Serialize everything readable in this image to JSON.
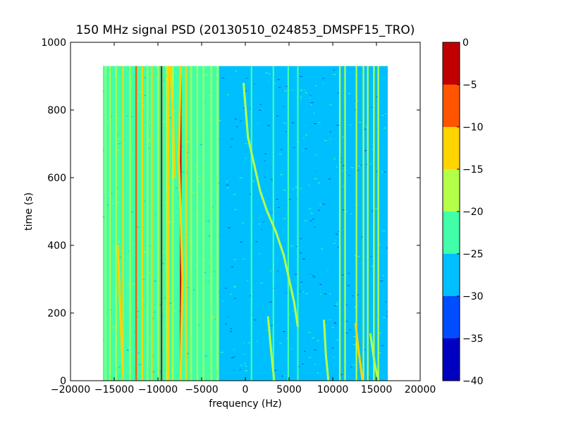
{
  "chart_data": {
    "type": "heatmap",
    "title": "150 MHz signal PSD (20130510_024853_DMSPF15_TRO)",
    "xlabel": "frequency (Hz)",
    "ylabel": "time (s)",
    "xlim": [
      -20000,
      20000
    ],
    "ylim": [
      0,
      1000
    ],
    "x_ticks": [
      "−20000",
      "−15000",
      "−10000",
      "−5000",
      "0",
      "5000",
      "10000",
      "15000",
      "20000"
    ],
    "y_ticks": [
      "0",
      "200",
      "400",
      "600",
      "800",
      "1000"
    ],
    "data_extent": {
      "x": [
        -16300,
        16300
      ],
      "y": [
        0,
        930
      ]
    },
    "colorbar": {
      "range": [
        -40,
        0
      ],
      "ticks": [
        "0",
        "−5",
        "−10",
        "−15",
        "−20",
        "−25",
        "−30",
        "−35",
        "−40"
      ],
      "levels": [
        {
          "from": -40,
          "to": -35,
          "color": "#0000c0"
        },
        {
          "from": -35,
          "to": -30,
          "color": "#004cff"
        },
        {
          "from": -30,
          "to": -25,
          "color": "#00bfff"
        },
        {
          "from": -25,
          "to": -20,
          "color": "#40ffa8"
        },
        {
          "from": -20,
          "to": -15,
          "color": "#b4ff47"
        },
        {
          "from": -15,
          "to": -10,
          "color": "#ffd400"
        },
        {
          "from": -10,
          "to": -5,
          "color": "#ff5500"
        },
        {
          "from": -5,
          "to": 0,
          "color": "#c00000"
        }
      ]
    },
    "background_regions": [
      {
        "x": [
          -16300,
          -3000
        ],
        "level": -22
      },
      {
        "x": [
          -3000,
          16300
        ],
        "level": -27
      }
    ],
    "vertical_lines": [
      {
        "x": -16000,
        "level": -18
      },
      {
        "x": -15500,
        "level": -18
      },
      {
        "x": -14800,
        "level": -18
      },
      {
        "x": -14000,
        "level": -12
      },
      {
        "x": -13200,
        "level": -18
      },
      {
        "x": -12500,
        "level": -7
      },
      {
        "x": -11800,
        "level": -12
      },
      {
        "x": -11200,
        "level": -18
      },
      {
        "x": -10700,
        "level": -12
      },
      {
        "x": -10000,
        "level": -18
      },
      {
        "x": -9600,
        "level": -3
      },
      {
        "x": -9000,
        "level": -18
      },
      {
        "x": -8800,
        "level": -12
      },
      {
        "x": -8300,
        "level": -18
      },
      {
        "x": -7400,
        "level": -3
      },
      {
        "x": -6800,
        "level": -12
      },
      {
        "x": -6200,
        "level": -18
      },
      {
        "x": -5500,
        "level": -18
      },
      {
        "x": -4800,
        "level": -18
      },
      {
        "x": -3900,
        "level": -18
      },
      {
        "x": -3200,
        "level": -18
      },
      {
        "x": 700,
        "level": -22
      },
      {
        "x": 3200,
        "level": -22
      },
      {
        "x": 4900,
        "level": -22
      },
      {
        "x": 6000,
        "level": -22
      },
      {
        "x": 10800,
        "level": -18
      },
      {
        "x": 11400,
        "level": -18
      },
      {
        "x": 12700,
        "level": -18
      },
      {
        "x": 13500,
        "level": -18
      },
      {
        "x": 14000,
        "level": -18
      },
      {
        "x": 14700,
        "level": -18
      },
      {
        "x": 15200,
        "level": -18
      }
    ],
    "traces": [
      {
        "level": -17,
        "points": [
          [
            -200,
            880
          ],
          [
            300,
            720
          ],
          [
            1000,
            640
          ],
          [
            1700,
            560
          ],
          [
            2500,
            500
          ],
          [
            3500,
            440
          ],
          [
            4400,
            370
          ],
          [
            5000,
            300
          ],
          [
            5600,
            230
          ],
          [
            6000,
            160
          ]
        ]
      },
      {
        "level": -12,
        "points": [
          [
            -7400,
            930
          ],
          [
            -7600,
            650
          ],
          [
            -7400,
            500
          ],
          [
            -7200,
            300
          ],
          [
            -7400,
            0
          ]
        ]
      },
      {
        "level": -12,
        "points": [
          [
            -8600,
            930
          ],
          [
            -8300,
            800
          ],
          [
            -8100,
            600
          ]
        ]
      },
      {
        "level": -12,
        "points": [
          [
            -14600,
            400
          ],
          [
            -14300,
            200
          ],
          [
            -14000,
            20
          ]
        ]
      },
      {
        "level": -18,
        "points": [
          [
            2600,
            190
          ],
          [
            2900,
            100
          ],
          [
            3300,
            0
          ]
        ]
      },
      {
        "level": -18,
        "points": [
          [
            9000,
            180
          ],
          [
            9200,
            80
          ],
          [
            9500,
            0
          ]
        ]
      },
      {
        "level": -15,
        "points": [
          [
            12600,
            170
          ],
          [
            13000,
            80
          ],
          [
            13400,
            0
          ]
        ]
      },
      {
        "level": -18,
        "points": [
          [
            14300,
            140
          ],
          [
            14800,
            50
          ],
          [
            15200,
            0
          ]
        ]
      }
    ]
  }
}
